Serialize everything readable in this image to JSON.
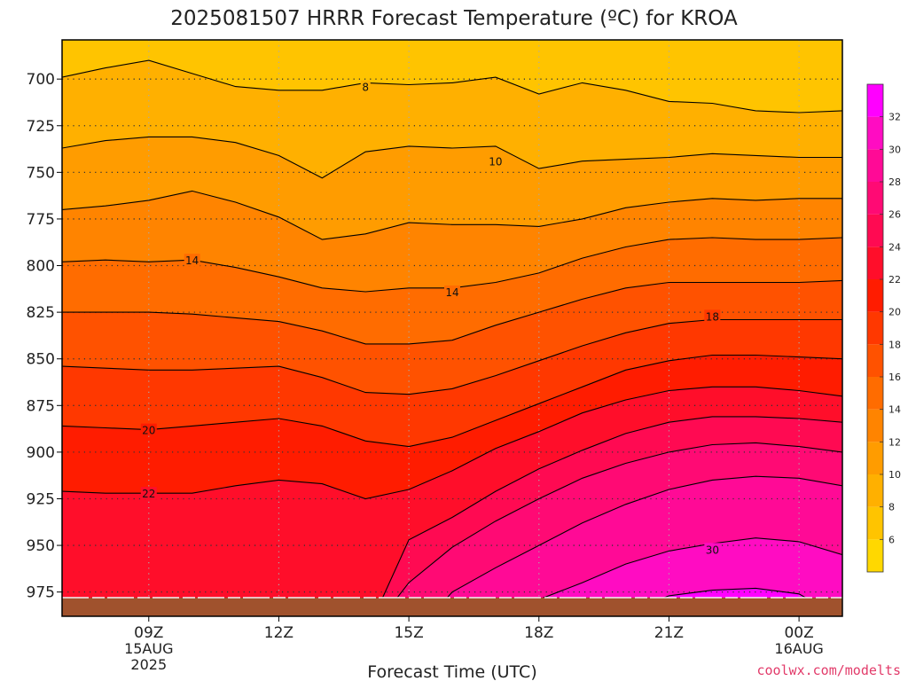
{
  "title": "2025081507 HRRR Forecast Temperature (ºC) for KROA",
  "credit": "coolwx.com/modelts",
  "colors": {
    "ground": "#a0522d",
    "contour": "#000000",
    "grid": "#555555",
    "bands": [
      "#ffd800",
      "#ffc400",
      "#ffb000",
      "#ff9c00",
      "#ff8400",
      "#ff6c00",
      "#ff5200",
      "#ff3800",
      "#ff1c00",
      "#ff0e2a",
      "#ff0a52",
      "#ff0a74",
      "#ff0a96",
      "#ff0cc2",
      "#ff00ff"
    ]
  },
  "chart_data": {
    "type": "heatmap",
    "title": "2025081507 HRRR Forecast Temperature (ºC) for KROA",
    "xlabel": "Forecast Time (UTC)",
    "ylabel": "",
    "x_ticks": [
      {
        "x": 9,
        "label": "09Z",
        "sub1": "15AUG",
        "sub2": "2025"
      },
      {
        "x": 12,
        "label": "12Z",
        "sub1": "",
        "sub2": ""
      },
      {
        "x": 15,
        "label": "15Z",
        "sub1": "",
        "sub2": ""
      },
      {
        "x": 18,
        "label": "18Z",
        "sub1": "",
        "sub2": ""
      },
      {
        "x": 21,
        "label": "21Z",
        "sub1": "",
        "sub2": ""
      },
      {
        "x": 24,
        "label": "00Z",
        "sub1": "16AUG",
        "sub2": ""
      }
    ],
    "y_ticks": [
      700,
      725,
      750,
      775,
      800,
      825,
      850,
      875,
      900,
      925,
      950,
      975
    ],
    "xlim": [
      7,
      25
    ],
    "ylim": [
      988,
      679
    ],
    "surface_pressure": 978,
    "grid": true,
    "colorbar": {
      "levels": [
        4,
        6,
        8,
        10,
        12,
        14,
        16,
        18,
        20,
        22,
        24,
        26,
        28,
        30,
        32,
        34
      ],
      "labels": [
        "6",
        "8",
        "10",
        "12",
        "14",
        "16",
        "18",
        "20",
        "22",
        "24",
        "26",
        "28",
        "30",
        "32"
      ],
      "placement": "right"
    },
    "contour_labels": [
      {
        "text": "8",
        "x": 14,
        "y": 704
      },
      {
        "text": "10",
        "x": 17,
        "y": 744
      },
      {
        "text": "14",
        "x": 10,
        "y": 797
      },
      {
        "text": "14",
        "x": 16,
        "y": 814
      },
      {
        "text": "18",
        "x": 22,
        "y": 827
      },
      {
        "text": "20",
        "x": 9,
        "y": 888
      },
      {
        "text": "22",
        "x": 9,
        "y": 922
      },
      {
        "text": "30",
        "x": 22,
        "y": 952
      }
    ],
    "contours": [
      {
        "level": 8,
        "points": [
          [
            7,
            699
          ],
          [
            8,
            694
          ],
          [
            9,
            690
          ],
          [
            10,
            697
          ],
          [
            11,
            704
          ],
          [
            12,
            706
          ],
          [
            13,
            706
          ],
          [
            14,
            702
          ],
          [
            15,
            703
          ],
          [
            16,
            702
          ],
          [
            17,
            699
          ],
          [
            18,
            708
          ],
          [
            19,
            702
          ],
          [
            20,
            706
          ],
          [
            21,
            712
          ],
          [
            22,
            713
          ],
          [
            23,
            717
          ],
          [
            24,
            718
          ],
          [
            25,
            717
          ]
        ]
      },
      {
        "level": 10,
        "points": [
          [
            7,
            737
          ],
          [
            8,
            733
          ],
          [
            9,
            731
          ],
          [
            10,
            731
          ],
          [
            11,
            734
          ],
          [
            12,
            741
          ],
          [
            13,
            753
          ],
          [
            14,
            739
          ],
          [
            15,
            736
          ],
          [
            16,
            737
          ],
          [
            17,
            736
          ],
          [
            18,
            748
          ],
          [
            19,
            744
          ],
          [
            20,
            743
          ],
          [
            21,
            742
          ],
          [
            22,
            740
          ],
          [
            23,
            741
          ],
          [
            24,
            742
          ],
          [
            25,
            742
          ]
        ]
      },
      {
        "level": 12,
        "points": [
          [
            7,
            770
          ],
          [
            8,
            768
          ],
          [
            9,
            765
          ],
          [
            10,
            760
          ],
          [
            11,
            766
          ],
          [
            12,
            774
          ],
          [
            13,
            786
          ],
          [
            14,
            783
          ],
          [
            15,
            777
          ],
          [
            16,
            778
          ],
          [
            17,
            778
          ],
          [
            18,
            779
          ],
          [
            19,
            775
          ],
          [
            20,
            769
          ],
          [
            21,
            766
          ],
          [
            22,
            764
          ],
          [
            23,
            765
          ],
          [
            24,
            764
          ],
          [
            25,
            764
          ]
        ]
      },
      {
        "level": 14,
        "points": [
          [
            7,
            798
          ],
          [
            8,
            797
          ],
          [
            9,
            798
          ],
          [
            10,
            797
          ],
          [
            11,
            801
          ],
          [
            12,
            806
          ],
          [
            13,
            812
          ],
          [
            14,
            814
          ],
          [
            15,
            812
          ],
          [
            16,
            812
          ],
          [
            17,
            809
          ],
          [
            18,
            804
          ],
          [
            19,
            796
          ],
          [
            20,
            790
          ],
          [
            21,
            786
          ],
          [
            22,
            785
          ],
          [
            23,
            786
          ],
          [
            24,
            786
          ],
          [
            25,
            785
          ]
        ]
      },
      {
        "level": 16,
        "points": [
          [
            7,
            825
          ],
          [
            8,
            825
          ],
          [
            9,
            825
          ],
          [
            10,
            826
          ],
          [
            11,
            828
          ],
          [
            12,
            830
          ],
          [
            13,
            835
          ],
          [
            14,
            842
          ],
          [
            15,
            842
          ],
          [
            16,
            840
          ],
          [
            17,
            832
          ],
          [
            18,
            825
          ],
          [
            19,
            818
          ],
          [
            20,
            812
          ],
          [
            21,
            809
          ],
          [
            22,
            809
          ],
          [
            23,
            809
          ],
          [
            24,
            809
          ],
          [
            25,
            808
          ]
        ]
      },
      {
        "level": 18,
        "points": [
          [
            7,
            854
          ],
          [
            8,
            855
          ],
          [
            9,
            856
          ],
          [
            10,
            856
          ],
          [
            11,
            855
          ],
          [
            12,
            854
          ],
          [
            13,
            860
          ],
          [
            14,
            868
          ],
          [
            15,
            869
          ],
          [
            16,
            866
          ],
          [
            17,
            859
          ],
          [
            18,
            851
          ],
          [
            19,
            843
          ],
          [
            20,
            836
          ],
          [
            21,
            831
          ],
          [
            22,
            829
          ],
          [
            23,
            829
          ],
          [
            24,
            829
          ],
          [
            25,
            829
          ]
        ]
      },
      {
        "level": 20,
        "points": [
          [
            7,
            886
          ],
          [
            8,
            887
          ],
          [
            9,
            888
          ],
          [
            10,
            886
          ],
          [
            11,
            884
          ],
          [
            12,
            882
          ],
          [
            13,
            886
          ],
          [
            14,
            894
          ],
          [
            15,
            897
          ],
          [
            16,
            892
          ],
          [
            17,
            883
          ],
          [
            18,
            874
          ],
          [
            19,
            865
          ],
          [
            20,
            856
          ],
          [
            21,
            851
          ],
          [
            22,
            848
          ],
          [
            23,
            848
          ],
          [
            24,
            849
          ],
          [
            25,
            850
          ]
        ]
      },
      {
        "level": 22,
        "points": [
          [
            7,
            921
          ],
          [
            8,
            922
          ],
          [
            9,
            922
          ],
          [
            10,
            922
          ],
          [
            11,
            918
          ],
          [
            12,
            915
          ],
          [
            13,
            917
          ],
          [
            14,
            925
          ],
          [
            15,
            920
          ],
          [
            16,
            910
          ],
          [
            17,
            898
          ],
          [
            18,
            889
          ],
          [
            19,
            879
          ],
          [
            20,
            872
          ],
          [
            21,
            867
          ],
          [
            22,
            865
          ],
          [
            23,
            865
          ],
          [
            24,
            867
          ],
          [
            25,
            870
          ]
        ]
      },
      {
        "level": 24,
        "points": [
          [
            14.2,
            988
          ],
          [
            15,
            947
          ],
          [
            16,
            935
          ],
          [
            17,
            921
          ],
          [
            18,
            909
          ],
          [
            19,
            899
          ],
          [
            20,
            890
          ],
          [
            21,
            884
          ],
          [
            22,
            881
          ],
          [
            23,
            881
          ],
          [
            24,
            882
          ],
          [
            25,
            884
          ]
        ]
      },
      {
        "level": 26,
        "points": [
          [
            14.4,
            988
          ],
          [
            15,
            970
          ],
          [
            16,
            951
          ],
          [
            17,
            937
          ],
          [
            18,
            925
          ],
          [
            19,
            914
          ],
          [
            20,
            906
          ],
          [
            21,
            900
          ],
          [
            22,
            896
          ],
          [
            23,
            895
          ],
          [
            24,
            897
          ],
          [
            25,
            900
          ]
        ]
      },
      {
        "level": 28,
        "points": [
          [
            15.5,
            988
          ],
          [
            16,
            975
          ],
          [
            17,
            962
          ],
          [
            18,
            950
          ],
          [
            19,
            938
          ],
          [
            20,
            928
          ],
          [
            21,
            920
          ],
          [
            22,
            915
          ],
          [
            23,
            913
          ],
          [
            24,
            914
          ],
          [
            25,
            918
          ]
        ]
      },
      {
        "level": 30,
        "points": [
          [
            17.5,
            988
          ],
          [
            18,
            979
          ],
          [
            19,
            970
          ],
          [
            20,
            960
          ],
          [
            21,
            953
          ],
          [
            22,
            949
          ],
          [
            23,
            946
          ],
          [
            24,
            948
          ],
          [
            25,
            955
          ]
        ]
      },
      {
        "level": 32,
        "points": [
          [
            19.8,
            988
          ],
          [
            21,
            977
          ],
          [
            22,
            974
          ],
          [
            23,
            973
          ],
          [
            24,
            976
          ],
          [
            24.9,
            988
          ]
        ]
      }
    ]
  }
}
